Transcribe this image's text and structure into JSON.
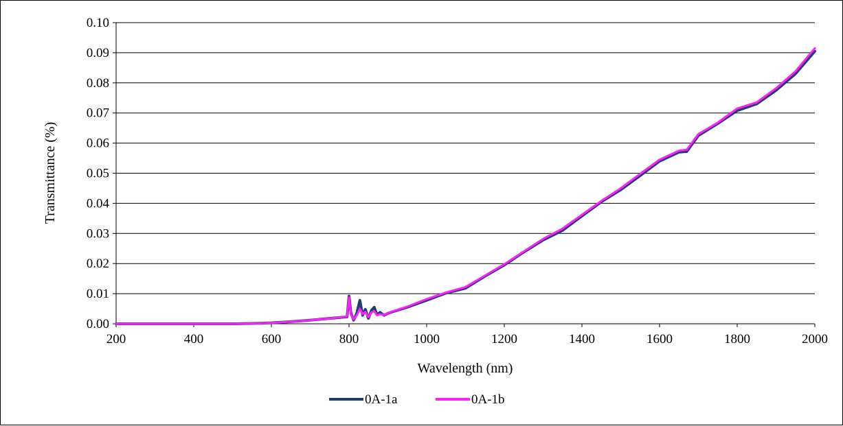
{
  "chart_data": {
    "type": "line",
    "title": "",
    "xlabel": "Wavelength (nm)",
    "ylabel": "Transmittance (%)",
    "xlim": [
      200,
      2000
    ],
    "ylim": [
      0,
      0.1
    ],
    "x_ticks": [
      "200",
      "400",
      "600",
      "800",
      "1000",
      "1200",
      "1400",
      "1600",
      "1800",
      "2000"
    ],
    "y_ticks": [
      "0.00",
      "0.01",
      "0.02",
      "0.03",
      "0.04",
      "0.05",
      "0.06",
      "0.07",
      "0.08",
      "0.09",
      "0.10"
    ],
    "grid": "horizontal",
    "legend_position": "bottom",
    "series": [
      {
        "name": "0A-1a",
        "color": "#1f3f6e",
        "points": [
          [
            200,
            0
          ],
          [
            300,
            0
          ],
          [
            400,
            0
          ],
          [
            500,
            0
          ],
          [
            550,
            0.0001
          ],
          [
            600,
            0.0003
          ],
          [
            650,
            0.0007
          ],
          [
            700,
            0.0012
          ],
          [
            750,
            0.0018
          ],
          [
            795,
            0.0023
          ],
          [
            800,
            0.0092
          ],
          [
            805,
            0.0035
          ],
          [
            812,
            0.0012
          ],
          [
            820,
            0.0035
          ],
          [
            828,
            0.0078
          ],
          [
            835,
            0.0028
          ],
          [
            842,
            0.0048
          ],
          [
            850,
            0.0018
          ],
          [
            858,
            0.0045
          ],
          [
            865,
            0.0055
          ],
          [
            872,
            0.003
          ],
          [
            880,
            0.0038
          ],
          [
            890,
            0.0028
          ],
          [
            900,
            0.0035
          ],
          [
            950,
            0.0055
          ],
          [
            1000,
            0.0078
          ],
          [
            1050,
            0.0102
          ],
          [
            1100,
            0.0118
          ],
          [
            1150,
            0.0158
          ],
          [
            1200,
            0.0195
          ],
          [
            1250,
            0.0238
          ],
          [
            1300,
            0.0278
          ],
          [
            1350,
            0.031
          ],
          [
            1400,
            0.0358
          ],
          [
            1450,
            0.0405
          ],
          [
            1500,
            0.0445
          ],
          [
            1550,
            0.0492
          ],
          [
            1600,
            0.054
          ],
          [
            1650,
            0.057
          ],
          [
            1670,
            0.0572
          ],
          [
            1700,
            0.0625
          ],
          [
            1750,
            0.0665
          ],
          [
            1800,
            0.0708
          ],
          [
            1850,
            0.073
          ],
          [
            1900,
            0.0775
          ],
          [
            1950,
            0.083
          ],
          [
            2000,
            0.0905
          ]
        ]
      },
      {
        "name": "0A-1b",
        "color": "#ff1fff",
        "points": [
          [
            200,
            0
          ],
          [
            300,
            0
          ],
          [
            400,
            0
          ],
          [
            500,
            0
          ],
          [
            550,
            0.0001
          ],
          [
            600,
            0.0003
          ],
          [
            650,
            0.0007
          ],
          [
            700,
            0.0012
          ],
          [
            750,
            0.0018
          ],
          [
            795,
            0.0024
          ],
          [
            800,
            0.0088
          ],
          [
            805,
            0.003
          ],
          [
            812,
            0.0015
          ],
          [
            820,
            0.0028
          ],
          [
            828,
            0.005
          ],
          [
            835,
            0.0032
          ],
          [
            842,
            0.004
          ],
          [
            850,
            0.0022
          ],
          [
            858,
            0.0038
          ],
          [
            865,
            0.0042
          ],
          [
            872,
            0.0028
          ],
          [
            880,
            0.0032
          ],
          [
            890,
            0.0029
          ],
          [
            900,
            0.0036
          ],
          [
            950,
            0.0057
          ],
          [
            1000,
            0.0082
          ],
          [
            1050,
            0.0104
          ],
          [
            1100,
            0.0122
          ],
          [
            1150,
            0.016
          ],
          [
            1200,
            0.0198
          ],
          [
            1250,
            0.024
          ],
          [
            1300,
            0.0282
          ],
          [
            1350,
            0.0316
          ],
          [
            1400,
            0.0362
          ],
          [
            1450,
            0.0408
          ],
          [
            1500,
            0.045
          ],
          [
            1550,
            0.0498
          ],
          [
            1600,
            0.0545
          ],
          [
            1650,
            0.0575
          ],
          [
            1670,
            0.0578
          ],
          [
            1700,
            0.063
          ],
          [
            1750,
            0.0668
          ],
          [
            1800,
            0.0715
          ],
          [
            1850,
            0.0735
          ],
          [
            1900,
            0.0782
          ],
          [
            1950,
            0.0838
          ],
          [
            2000,
            0.0915
          ]
        ]
      }
    ]
  }
}
